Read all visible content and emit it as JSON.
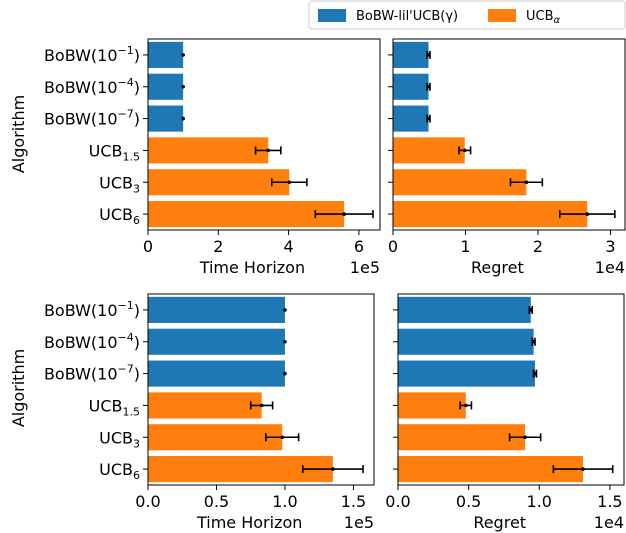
{
  "legend": {
    "entries": [
      {
        "label": "BoBW-lil'UCB(γ)",
        "color": "#1f77b4"
      },
      {
        "label": "UCBα",
        "label_base": "UCB",
        "label_sub": "α",
        "color": "#ff7f0e"
      }
    ],
    "placement": "top-right"
  },
  "categories": [
    {
      "base": "BoBW(10",
      "sup": "−1",
      "tail": ")",
      "color": "#1f77b4"
    },
    {
      "base": "BoBW(10",
      "sup": "−4",
      "tail": ")",
      "color": "#1f77b4"
    },
    {
      "base": "BoBW(10",
      "sup": "−7",
      "tail": ")",
      "color": "#1f77b4"
    },
    {
      "base": "UCB",
      "sub": "1.5",
      "color": "#ff7f0e"
    },
    {
      "base": "UCB",
      "sub": "3",
      "color": "#ff7f0e"
    },
    {
      "base": "UCB",
      "sub": "6",
      "color": "#ff7f0e"
    }
  ],
  "ylabel": "Algorithm",
  "chart_data": [
    {
      "type": "bar",
      "orientation": "horizontal",
      "xlabel": "Time Horizon",
      "sci": "1e5",
      "scale": 100000,
      "xlim": [
        0,
        6.6
      ],
      "ticks": [
        0,
        2,
        4,
        6
      ],
      "tick_labels": [
        "0",
        "2",
        "4",
        "6"
      ],
      "values": [
        1.0,
        1.0,
        1.0,
        3.42,
        4.02,
        5.58
      ],
      "errors": [
        0,
        0,
        0,
        0.36,
        0.5,
        0.82
      ]
    },
    {
      "type": "bar",
      "orientation": "horizontal",
      "xlabel": "Regret",
      "sci": "1e4",
      "scale": 10000,
      "xlim": [
        0,
        3.2
      ],
      "ticks": [
        0,
        1,
        2,
        3
      ],
      "tick_labels": [
        "0",
        "1",
        "2",
        "3"
      ],
      "values": [
        0.49,
        0.49,
        0.49,
        0.99,
        1.84,
        2.68
      ],
      "errors": [
        0.02,
        0.02,
        0.02,
        0.08,
        0.22,
        0.38
      ]
    },
    {
      "type": "bar",
      "orientation": "horizontal",
      "xlabel": "Time Horizon",
      "sci": "1e5",
      "scale": 100000,
      "xlim": [
        0,
        1.65
      ],
      "ticks": [
        0,
        0.5,
        1.0,
        1.5
      ],
      "tick_labels": [
        "0.0",
        "0.5",
        "1.0",
        "1.5"
      ],
      "values": [
        1.0,
        1.0,
        1.0,
        0.83,
        0.98,
        1.35
      ],
      "errors": [
        0,
        0,
        0,
        0.08,
        0.12,
        0.22
      ]
    },
    {
      "type": "bar",
      "orientation": "horizontal",
      "xlabel": "Regret",
      "sci": "1e4",
      "scale": 10000,
      "xlim": [
        0,
        1.6
      ],
      "ticks": [
        0,
        0.5,
        1.0,
        1.5
      ],
      "tick_labels": [
        "0.0",
        "0.5",
        "1.0",
        "1.5"
      ],
      "values": [
        0.94,
        0.96,
        0.97,
        0.48,
        0.9,
        1.31
      ],
      "errors": [
        0.01,
        0.01,
        0.01,
        0.04,
        0.11,
        0.21
      ]
    }
  ]
}
